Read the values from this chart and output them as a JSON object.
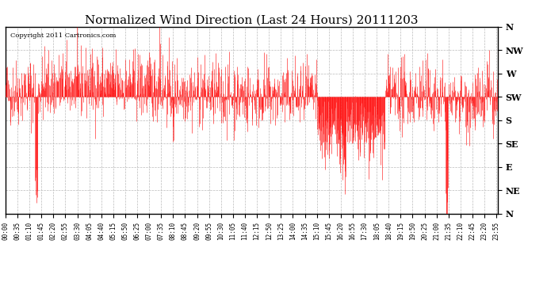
{
  "title": "Normalized Wind Direction (Last 24 Hours) 20111203",
  "copyright_text": "Copyright 2011 Cartronics.com",
  "line_color": "#ff0000",
  "background_color": "#ffffff",
  "grid_color": "#bbbbbb",
  "ytick_labels": [
    "N",
    "NW",
    "W",
    "SW",
    "S",
    "SE",
    "E",
    "NE",
    "N"
  ],
  "ytick_values": [
    1.0,
    0.875,
    0.75,
    0.625,
    0.5,
    0.375,
    0.25,
    0.125,
    0.0
  ],
  "ylim": [
    0.0,
    1.0
  ],
  "title_fontsize": 11,
  "figsize": [
    6.9,
    3.75
  ],
  "dpi": 100,
  "seed": 42
}
